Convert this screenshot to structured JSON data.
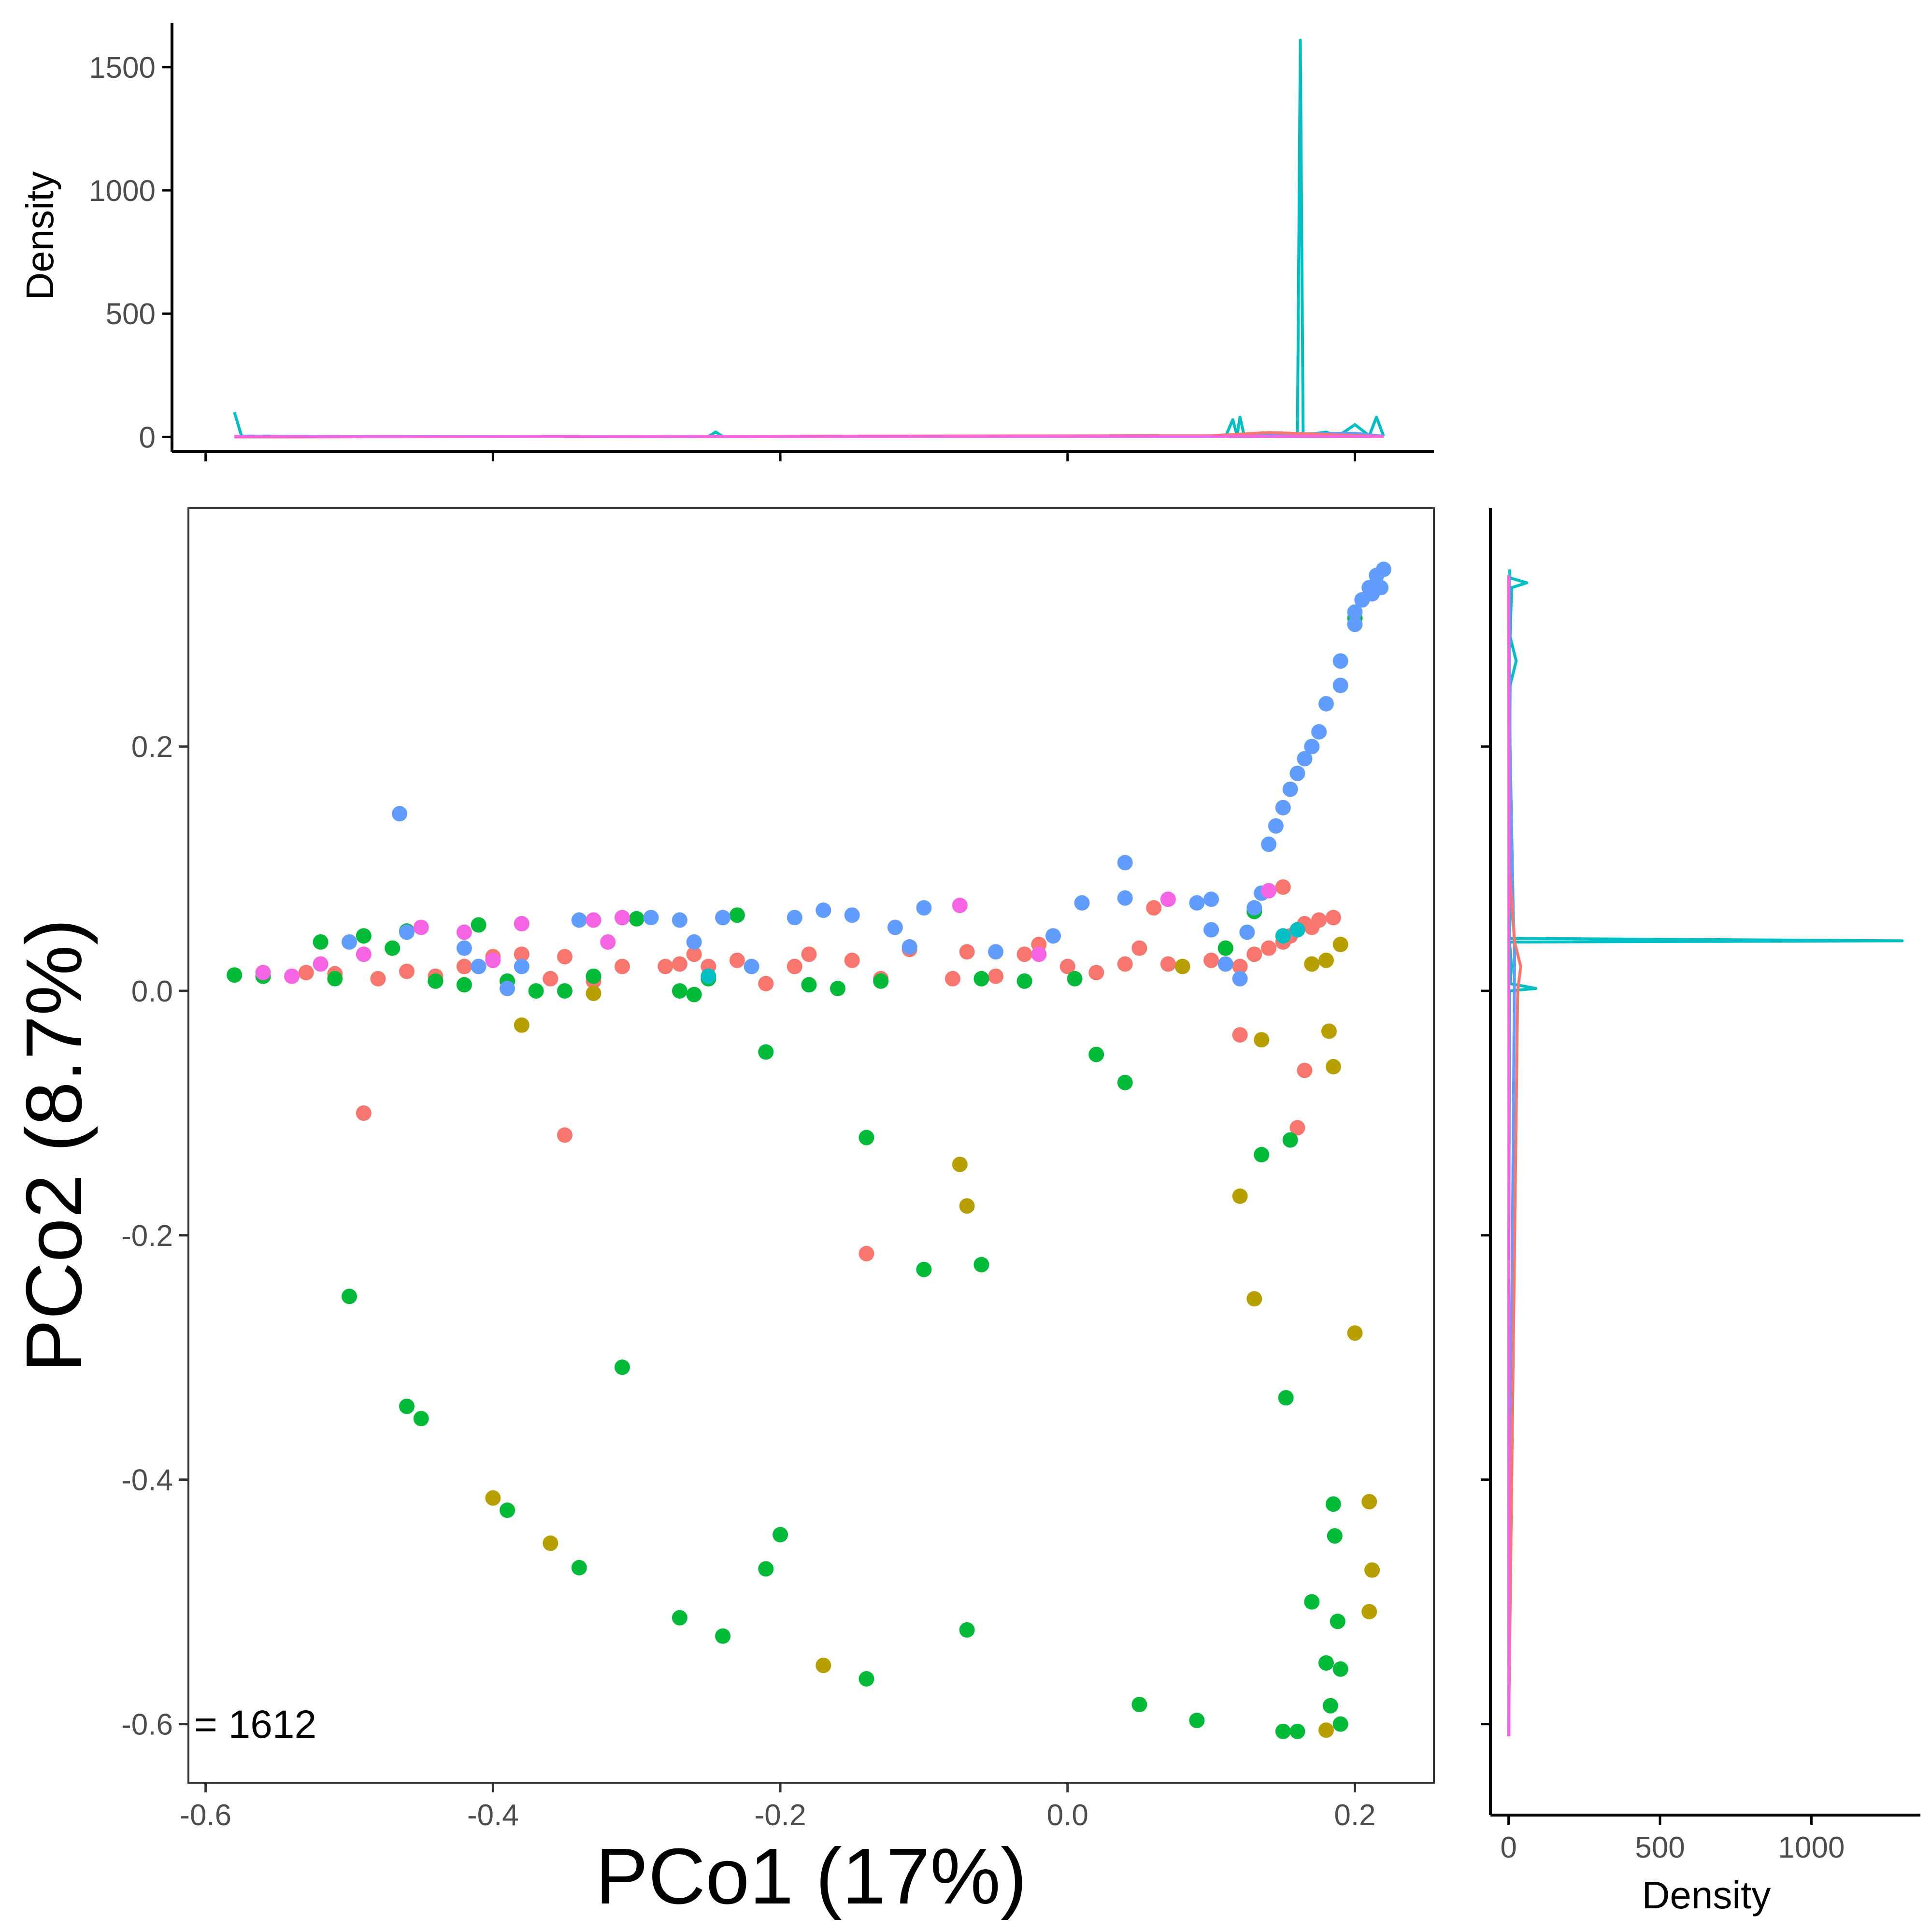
{
  "chart_data": {
    "type": "scatter",
    "x_label": "PCo1 (17%)",
    "y_label": "PCo2 (8.7%)",
    "annotation": "= 1612",
    "x_ticks": [
      -0.6,
      -0.4,
      -0.2,
      0.0,
      0.2
    ],
    "x_tick_labels": [
      "-0.6",
      "-0.4",
      "-0.2",
      "0.0",
      "0.2"
    ],
    "y_ticks": [
      -0.6,
      -0.4,
      -0.2,
      0.0,
      0.2
    ],
    "y_tick_labels": [
      "-0.6",
      "-0.4",
      "-0.2",
      "0.0",
      "0.2"
    ],
    "xlim": [
      -0.612,
      0.255
    ],
    "ylim": [
      -0.648,
      0.395
    ],
    "grid": false,
    "legend": "none",
    "series": [
      {
        "color": "#F8766D",
        "points": [
          [
            -0.56,
            0.012
          ],
          [
            -0.53,
            0.015
          ],
          [
            -0.51,
            0.014
          ],
          [
            -0.48,
            0.01
          ],
          [
            -0.46,
            0.016
          ],
          [
            -0.44,
            0.012
          ],
          [
            -0.42,
            0.02
          ],
          [
            -0.4,
            0.028
          ],
          [
            -0.38,
            0.03
          ],
          [
            -0.36,
            0.01
          ],
          [
            -0.35,
            0.028
          ],
          [
            -0.33,
            0.008
          ],
          [
            -0.31,
            0.02
          ],
          [
            -0.28,
            0.02
          ],
          [
            -0.27,
            0.022
          ],
          [
            -0.26,
            0.03
          ],
          [
            -0.25,
            0.02
          ],
          [
            -0.23,
            0.025
          ],
          [
            -0.21,
            0.006
          ],
          [
            -0.19,
            0.02
          ],
          [
            -0.18,
            0.03
          ],
          [
            -0.15,
            0.025
          ],
          [
            -0.13,
            0.01
          ],
          [
            -0.11,
            0.034
          ],
          [
            -0.08,
            0.01
          ],
          [
            -0.07,
            0.032
          ],
          [
            -0.05,
            0.012
          ],
          [
            -0.03,
            0.03
          ],
          [
            -0.02,
            0.038
          ],
          [
            0.0,
            0.02
          ],
          [
            0.02,
            0.015
          ],
          [
            0.04,
            0.022
          ],
          [
            0.05,
            0.035
          ],
          [
            0.06,
            0.068
          ],
          [
            0.07,
            0.022
          ],
          [
            0.1,
            0.025
          ],
          [
            0.12,
            0.02
          ],
          [
            0.13,
            0.03
          ],
          [
            0.14,
            0.035
          ],
          [
            0.15,
            0.04
          ],
          [
            0.155,
            0.045
          ],
          [
            0.16,
            0.05
          ],
          [
            0.165,
            0.055
          ],
          [
            0.17,
            0.052
          ],
          [
            0.175,
            0.058
          ],
          [
            0.185,
            0.06
          ],
          [
            0.15,
            0.085
          ],
          [
            0.12,
            -0.036
          ],
          [
            0.165,
            -0.065
          ],
          [
            0.16,
            -0.112
          ],
          [
            -0.49,
            -0.1
          ],
          [
            -0.35,
            -0.118
          ],
          [
            -0.14,
            -0.215
          ]
        ]
      },
      {
        "color": "#B79F00",
        "points": [
          [
            -0.38,
            -0.028
          ],
          [
            -0.33,
            -0.002
          ],
          [
            -0.4,
            -0.415
          ],
          [
            -0.36,
            -0.452
          ],
          [
            -0.17,
            -0.552
          ],
          [
            -0.075,
            -0.142
          ],
          [
            -0.07,
            -0.176
          ],
          [
            0.08,
            0.02
          ],
          [
            0.135,
            -0.04
          ],
          [
            0.12,
            -0.168
          ],
          [
            0.13,
            -0.252
          ],
          [
            0.17,
            0.022
          ],
          [
            0.18,
            0.025
          ],
          [
            0.185,
            -0.062
          ],
          [
            0.182,
            -0.033
          ],
          [
            0.2,
            -0.28
          ],
          [
            0.21,
            -0.418
          ],
          [
            0.212,
            -0.474
          ],
          [
            0.21,
            -0.508
          ],
          [
            0.18,
            -0.605
          ],
          [
            0.19,
            0.038
          ]
        ]
      },
      {
        "color": "#00BA38",
        "points": [
          [
            -0.58,
            0.013
          ],
          [
            -0.56,
            0.012
          ],
          [
            -0.52,
            0.04
          ],
          [
            -0.51,
            0.01
          ],
          [
            -0.49,
            0.045
          ],
          [
            -0.47,
            0.035
          ],
          [
            -0.46,
            0.049
          ],
          [
            -0.44,
            0.008
          ],
          [
            -0.42,
            0.005
          ],
          [
            -0.41,
            0.054
          ],
          [
            -0.39,
            0.008
          ],
          [
            -0.37,
            0.0
          ],
          [
            -0.35,
            0.0
          ],
          [
            -0.33,
            0.012
          ],
          [
            -0.3,
            0.059
          ],
          [
            -0.27,
            0.0
          ],
          [
            -0.26,
            -0.003
          ],
          [
            -0.25,
            0.01
          ],
          [
            -0.23,
            0.062
          ],
          [
            -0.21,
            -0.05
          ],
          [
            -0.2,
            -0.445
          ],
          [
            -0.18,
            0.005
          ],
          [
            -0.16,
            0.002
          ],
          [
            -0.14,
            -0.12
          ],
          [
            -0.13,
            0.008
          ],
          [
            -0.1,
            -0.228
          ],
          [
            -0.06,
            0.01
          ],
          [
            -0.06,
            -0.224
          ],
          [
            -0.07,
            -0.523
          ],
          [
            -0.03,
            0.008
          ],
          [
            0.005,
            0.01
          ],
          [
            0.02,
            -0.052
          ],
          [
            0.04,
            -0.075
          ],
          [
            0.05,
            -0.584
          ],
          [
            0.09,
            -0.597
          ],
          [
            0.11,
            0.035
          ],
          [
            0.13,
            0.065
          ],
          [
            0.135,
            -0.134
          ],
          [
            0.155,
            -0.122
          ],
          [
            0.152,
            -0.333
          ],
          [
            0.17,
            -0.5
          ],
          [
            0.18,
            -0.55
          ],
          [
            0.183,
            -0.585
          ],
          [
            0.185,
            -0.42
          ],
          [
            0.186,
            -0.446
          ],
          [
            0.188,
            -0.516
          ],
          [
            0.19,
            -0.555
          ],
          [
            0.19,
            -0.6
          ],
          [
            0.15,
            -0.606
          ],
          [
            0.16,
            -0.606
          ],
          [
            0.2,
            0.305
          ],
          [
            -0.5,
            -0.25
          ],
          [
            -0.46,
            -0.34
          ],
          [
            -0.45,
            -0.35
          ],
          [
            -0.31,
            -0.308
          ],
          [
            -0.39,
            -0.425
          ],
          [
            -0.34,
            -0.472
          ],
          [
            -0.27,
            -0.513
          ],
          [
            -0.24,
            -0.528
          ],
          [
            -0.21,
            -0.473
          ],
          [
            -0.14,
            -0.563
          ]
        ]
      },
      {
        "color": "#00BFC4",
        "points": [
          [
            -0.25,
            0.012
          ],
          [
            0.15,
            0.045
          ],
          [
            0.16,
            0.05
          ]
        ]
      },
      {
        "color": "#619CFF",
        "points": [
          [
            -0.5,
            0.04
          ],
          [
            -0.46,
            0.048
          ],
          [
            -0.465,
            0.145
          ],
          [
            -0.42,
            0.035
          ],
          [
            -0.41,
            0.02
          ],
          [
            -0.39,
            0.002
          ],
          [
            -0.38,
            0.02
          ],
          [
            -0.34,
            0.058
          ],
          [
            -0.29,
            0.06
          ],
          [
            -0.27,
            0.058
          ],
          [
            -0.26,
            0.04
          ],
          [
            -0.24,
            0.06
          ],
          [
            -0.22,
            0.02
          ],
          [
            -0.19,
            0.06
          ],
          [
            -0.17,
            0.066
          ],
          [
            -0.15,
            0.062
          ],
          [
            -0.12,
            0.052
          ],
          [
            -0.11,
            0.036
          ],
          [
            -0.1,
            0.068
          ],
          [
            -0.05,
            0.032
          ],
          [
            -0.01,
            0.045
          ],
          [
            0.01,
            0.072
          ],
          [
            0.04,
            0.105
          ],
          [
            0.04,
            0.076
          ],
          [
            0.09,
            0.072
          ],
          [
            0.1,
            0.075
          ],
          [
            0.1,
            0.05
          ],
          [
            0.11,
            0.022
          ],
          [
            0.12,
            0.01
          ],
          [
            0.125,
            0.048
          ],
          [
            0.13,
            0.068
          ],
          [
            0.135,
            0.08
          ],
          [
            0.14,
            0.12
          ],
          [
            0.145,
            0.135
          ],
          [
            0.15,
            0.15
          ],
          [
            0.155,
            0.165
          ],
          [
            0.16,
            0.178
          ],
          [
            0.165,
            0.19
          ],
          [
            0.17,
            0.2
          ],
          [
            0.175,
            0.212
          ],
          [
            0.18,
            0.235
          ],
          [
            0.19,
            0.25
          ],
          [
            0.19,
            0.27
          ],
          [
            0.2,
            0.31
          ],
          [
            0.205,
            0.32
          ],
          [
            0.21,
            0.33
          ],
          [
            0.215,
            0.34
          ],
          [
            0.22,
            0.345
          ],
          [
            0.218,
            0.33
          ],
          [
            0.212,
            0.325
          ],
          [
            0.2,
            0.3
          ]
        ]
      },
      {
        "color": "#F564E3",
        "points": [
          [
            -0.56,
            0.015
          ],
          [
            -0.54,
            0.012
          ],
          [
            -0.52,
            0.022
          ],
          [
            -0.49,
            0.03
          ],
          [
            -0.45,
            0.052
          ],
          [
            -0.42,
            0.048
          ],
          [
            -0.4,
            0.025
          ],
          [
            -0.38,
            0.055
          ],
          [
            -0.33,
            0.058
          ],
          [
            -0.31,
            0.06
          ],
          [
            -0.32,
            0.04
          ],
          [
            -0.075,
            0.07
          ],
          [
            -0.02,
            0.03
          ],
          [
            0.07,
            0.075
          ],
          [
            0.14,
            0.082
          ]
        ]
      }
    ],
    "top_density": {
      "y_label": "Density",
      "y_ticks": [
        0,
        500,
        1000,
        1500
      ],
      "y_tick_labels": [
        "0",
        "500",
        "1000",
        "1500"
      ],
      "ylim": [
        -60,
        1680
      ],
      "curves": [
        {
          "color": "#00BFC4",
          "points": [
            [
              -0.58,
              100
            ],
            [
              -0.575,
              3
            ],
            [
              -0.25,
              2
            ],
            [
              -0.245,
              20
            ],
            [
              -0.24,
              2
            ],
            [
              0.11,
              2
            ],
            [
              0.115,
              70
            ],
            [
              0.118,
              5
            ],
            [
              0.12,
              80
            ],
            [
              0.123,
              4
            ],
            [
              0.14,
              4
            ],
            [
              0.15,
              10
            ],
            [
              0.16,
              10
            ],
            [
              0.162,
              1610
            ],
            [
              0.164,
              10
            ],
            [
              0.17,
              12
            ],
            [
              0.18,
              20
            ],
            [
              0.185,
              8
            ],
            [
              0.19,
              10
            ],
            [
              0.2,
              50
            ],
            [
              0.21,
              5
            ],
            [
              0.215,
              80
            ],
            [
              0.22,
              3
            ]
          ]
        },
        {
          "color": "#619CFF",
          "points": [
            [
              -0.58,
              0
            ],
            [
              0.1,
              3
            ],
            [
              0.15,
              12
            ],
            [
              0.2,
              15
            ],
            [
              0.22,
              3
            ]
          ]
        },
        {
          "color": "#F8766D",
          "points": [
            [
              -0.58,
              0
            ],
            [
              0.1,
              5
            ],
            [
              0.14,
              18
            ],
            [
              0.18,
              10
            ],
            [
              0.22,
              2
            ]
          ]
        },
        {
          "color": "#F564E3",
          "points": [
            [
              -0.58,
              2
            ],
            [
              0.1,
              2
            ],
            [
              0.22,
              2
            ]
          ]
        }
      ]
    },
    "right_density": {
      "x_label": "Density",
      "x_ticks": [
        0,
        500,
        1000
      ],
      "x_tick_labels": [
        "0",
        "500",
        "1000"
      ],
      "xlim": [
        -60,
        1360
      ],
      "curves": [
        {
          "color": "#00BFC4",
          "points": [
            [
              -0.61,
              1
            ],
            [
              -0.2,
              1
            ],
            [
              0.0,
              3
            ],
            [
              0.002,
              90
            ],
            [
              0.006,
              5
            ],
            [
              0.02,
              10
            ],
            [
              0.04,
              3
            ],
            [
              0.041,
              1300
            ],
            [
              0.043,
              3
            ],
            [
              0.06,
              5
            ],
            [
              0.1,
              3
            ],
            [
              0.25,
              5
            ],
            [
              0.27,
              25
            ],
            [
              0.29,
              5
            ],
            [
              0.33,
              10
            ],
            [
              0.334,
              60
            ],
            [
              0.338,
              5
            ],
            [
              0.345,
              3
            ]
          ]
        },
        {
          "color": "#619CFF",
          "points": [
            [
              -0.61,
              0
            ],
            [
              0.03,
              20
            ],
            [
              0.07,
              15
            ],
            [
              0.2,
              5
            ],
            [
              0.34,
              2
            ]
          ]
        },
        {
          "color": "#F8766D",
          "points": [
            [
              -0.61,
              0
            ],
            [
              0.0,
              30
            ],
            [
              0.02,
              40
            ],
            [
              0.04,
              20
            ],
            [
              0.1,
              2
            ],
            [
              0.34,
              0
            ]
          ]
        },
        {
          "color": "#F564E3",
          "points": [
            [
              -0.61,
              1
            ],
            [
              0.34,
              1
            ]
          ]
        }
      ]
    }
  }
}
